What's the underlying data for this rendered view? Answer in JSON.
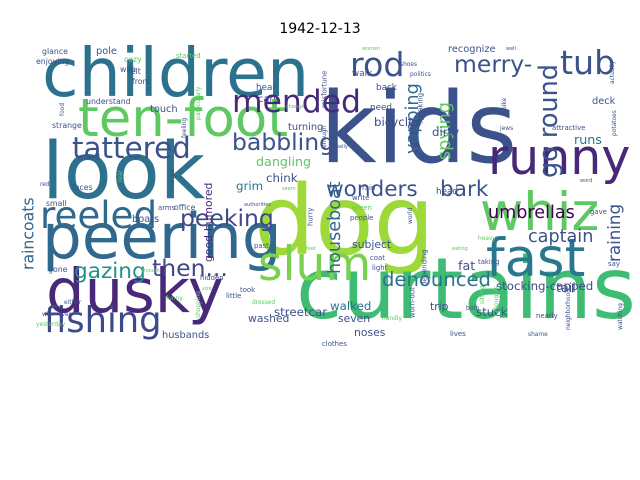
{
  "chart_data": {
    "type": "wordcloud",
    "title": "1942-12-13",
    "palette": [
      "#440154",
      "#3b528b",
      "#21918c",
      "#5ec962",
      "#9ed93a"
    ],
    "words": [
      {
        "text": "kids",
        "weight": 100,
        "color": "#3b528b",
        "vertical": false
      },
      {
        "text": "dog",
        "weight": 98,
        "color": "#9ed93a",
        "vertical": false
      },
      {
        "text": "curtains",
        "weight": 86,
        "color": "#3fbc73",
        "vertical": false
      },
      {
        "text": "look",
        "weight": 80,
        "color": "#2c728e",
        "vertical": false
      },
      {
        "text": "children",
        "weight": 68,
        "color": "#2c728e",
        "vertical": false
      },
      {
        "text": "peering",
        "weight": 64,
        "color": "#31688e",
        "vertical": false
      },
      {
        "text": "dusky",
        "weight": 62,
        "color": "#482878",
        "vertical": false
      },
      {
        "text": "ten-foot",
        "weight": 54,
        "color": "#5ec962",
        "vertical": false
      },
      {
        "text": "fast",
        "weight": 54,
        "color": "#2a788e",
        "vertical": false
      },
      {
        "text": "whiz",
        "weight": 54,
        "color": "#5ec962",
        "vertical": false
      },
      {
        "text": "runny",
        "weight": 50,
        "color": "#482878",
        "vertical": false
      },
      {
        "text": "slum",
        "weight": 48,
        "color": "#7ad151",
        "vertical": false
      },
      {
        "text": "reeled",
        "weight": 38,
        "color": "#31688e",
        "vertical": false
      },
      {
        "text": "fishing",
        "weight": 36,
        "color": "#3e4989",
        "vertical": false
      },
      {
        "text": "rod",
        "weight": 34,
        "color": "#3b528b",
        "vertical": false
      },
      {
        "text": "tub",
        "weight": 34,
        "color": "#3b528b",
        "vertical": false
      },
      {
        "text": "mended",
        "weight": 32,
        "color": "#482878",
        "vertical": false
      },
      {
        "text": "tattered",
        "weight": 30,
        "color": "#3b528b",
        "vertical": false
      },
      {
        "text": "go round",
        "weight": 26,
        "color": "#3b528b",
        "vertical": true
      },
      {
        "text": "merry-",
        "weight": 24,
        "color": "#3b528b",
        "vertical": false
      },
      {
        "text": "peeking",
        "weight": 24,
        "color": "#3e4989",
        "vertical": false
      },
      {
        "text": "babbling",
        "weight": 24,
        "color": "#3b528b",
        "vertical": false
      },
      {
        "text": "then...",
        "weight": 24,
        "color": "#3e4989",
        "vertical": false
      },
      {
        "text": "wonders",
        "weight": 22,
        "color": "#3b528b",
        "vertical": false
      },
      {
        "text": "bark",
        "weight": 22,
        "color": "#3b528b",
        "vertical": false
      },
      {
        "text": "gazing",
        "weight": 22,
        "color": "#21918c",
        "vertical": false
      },
      {
        "text": "denounced",
        "weight": 20,
        "color": "#2c728e",
        "vertical": false
      },
      {
        "text": "captain",
        "weight": 18,
        "color": "#3b528b",
        "vertical": false
      },
      {
        "text": "houseboat",
        "weight": 18,
        "color": "#31688e",
        "vertical": true
      },
      {
        "text": "yapping",
        "weight": 18,
        "color": "#31688e",
        "vertical": true
      },
      {
        "text": "spying",
        "weight": 18,
        "color": "#5ec962",
        "vertical": true
      },
      {
        "text": "umbrellas",
        "weight": 18,
        "color": "#440154",
        "vertical": false
      },
      {
        "text": "raining",
        "weight": 17,
        "color": "#3b528b",
        "vertical": true
      },
      {
        "text": "raincoats",
        "weight": 16,
        "color": "#31688e",
        "vertical": true
      },
      {
        "text": "stocking-capped",
        "weight": 12,
        "color": "#3e4989",
        "vertical": false
      },
      {
        "text": "good-humored",
        "weight": 11,
        "color": "#482878",
        "vertical": true
      },
      {
        "text": "dangling",
        "weight": 13,
        "color": "#5ec962",
        "vertical": false
      },
      {
        "text": "tail",
        "weight": 13,
        "color": "#3b528b",
        "vertical": false
      },
      {
        "text": "runs",
        "weight": 13,
        "color": "#2c728e",
        "vertical": false
      },
      {
        "text": "fat",
        "weight": 13,
        "color": "#3b528b",
        "vertical": false
      },
      {
        "text": "stuck",
        "weight": 12,
        "color": "#3b528b",
        "vertical": false
      },
      {
        "text": "chink",
        "weight": 12,
        "color": "#3b528b",
        "vertical": false
      },
      {
        "text": "grim",
        "weight": 12,
        "color": "#2a788e",
        "vertical": false
      },
      {
        "text": "dirty",
        "weight": 12,
        "color": "#3b528b",
        "vertical": false
      },
      {
        "text": "bicycles",
        "weight": 12,
        "color": "#3e4989",
        "vertical": false
      },
      {
        "text": "walked",
        "weight": 12,
        "color": "#2c728e",
        "vertical": false
      },
      {
        "text": "streetcar",
        "weight": 12,
        "color": "#3b528b",
        "vertical": false
      },
      {
        "text": "washed",
        "weight": 11,
        "color": "#3b528b",
        "vertical": false
      },
      {
        "text": "subject",
        "weight": 11,
        "color": "#3b528b",
        "vertical": false
      },
      {
        "text": "trip",
        "weight": 11,
        "color": "#3b528b",
        "vertical": false
      },
      {
        "text": "seven",
        "weight": 11,
        "color": "#3b528b",
        "vertical": false
      },
      {
        "text": "noses",
        "weight": 11,
        "color": "#3b528b",
        "vertical": false
      },
      {
        "text": "husbands",
        "weight": 10,
        "color": "#3b528b",
        "vertical": false
      },
      {
        "text": "boats",
        "weight": 10,
        "color": "#3b528b",
        "vertical": false
      },
      {
        "text": "recognize",
        "weight": 10,
        "color": "#3b528b",
        "vertical": false
      },
      {
        "text": "pole",
        "weight": 10,
        "color": "#3b528b",
        "vertical": false
      },
      {
        "text": "deck",
        "weight": 10,
        "color": "#3b528b",
        "vertical": false
      },
      {
        "text": "touch",
        "weight": 10,
        "color": "#3b528b",
        "vertical": false
      },
      {
        "text": "turning",
        "weight": 10,
        "color": "#3b528b",
        "vertical": false
      },
      {
        "text": "cars",
        "weight": 10,
        "color": "#3b528b",
        "vertical": false
      },
      {
        "text": "hear",
        "weight": 9,
        "color": "#3b528b",
        "vertical": false
      },
      {
        "text": "head",
        "weight": 9,
        "color": "#3b528b",
        "vertical": false
      },
      {
        "text": "need",
        "weight": 9,
        "color": "#3b528b",
        "vertical": false
      },
      {
        "text": "back",
        "weight": 9,
        "color": "#3b528b",
        "vertical": false
      },
      {
        "text": "walk",
        "weight": 9,
        "color": "#3b528b",
        "vertical": false
      },
      {
        "text": "glance",
        "weight": 8,
        "color": "#3b528b",
        "vertical": false
      },
      {
        "text": "enjoying",
        "weight": 8,
        "color": "#3b528b",
        "vertical": false
      },
      {
        "text": "understand",
        "weight": 8,
        "color": "#3b528b",
        "vertical": false
      },
      {
        "text": "strange",
        "weight": 8,
        "color": "#3b528b",
        "vertical": false
      },
      {
        "text": "mood",
        "weight": 8,
        "color": "#3b528b",
        "vertical": false
      },
      {
        "text": "faces",
        "weight": 8,
        "color": "#3b528b",
        "vertical": false
      },
      {
        "text": "small",
        "weight": 8,
        "color": "#3b528b",
        "vertical": false
      },
      {
        "text": "gone",
        "weight": 8,
        "color": "#3b528b",
        "vertical": false
      },
      {
        "text": "cozy",
        "weight": 8,
        "color": "#5ec962",
        "vertical": false
      },
      {
        "text": "wife",
        "weight": 8,
        "color": "#3b528b",
        "vertical": false
      },
      {
        "text": "felt",
        "weight": 8,
        "color": "#3b528b",
        "vertical": false
      },
      {
        "text": "front",
        "weight": 8,
        "color": "#3b528b",
        "vertical": false
      },
      {
        "text": "started",
        "weight": 7,
        "color": "#5ec962",
        "vertical": false
      },
      {
        "text": "office",
        "weight": 8,
        "color": "#3b528b",
        "vertical": false
      },
      {
        "text": "arms",
        "weight": 7,
        "color": "#3b528b",
        "vertical": false
      },
      {
        "text": "hidden",
        "weight": 7,
        "color": "#3b528b",
        "vertical": false
      },
      {
        "text": "past",
        "weight": 7,
        "color": "#3b528b",
        "vertical": false
      },
      {
        "text": "people",
        "weight": 7,
        "color": "#3b528b",
        "vertical": false
      },
      {
        "text": "write",
        "weight": 7,
        "color": "#3b528b",
        "vertical": false
      },
      {
        "text": "rain",
        "weight": 7,
        "color": "#3b528b",
        "vertical": false
      },
      {
        "text": "coat",
        "weight": 7,
        "color": "#3b528b",
        "vertical": false
      },
      {
        "text": "light",
        "weight": 7,
        "color": "#3b528b",
        "vertical": false
      },
      {
        "text": "green",
        "weight": 7,
        "color": "#5ec962",
        "vertical": false
      },
      {
        "text": "clothes",
        "weight": 7,
        "color": "#3b528b",
        "vertical": false
      },
      {
        "text": "took",
        "weight": 7,
        "color": "#3b528b",
        "vertical": false
      },
      {
        "text": "little",
        "weight": 7,
        "color": "#3b528b",
        "vertical": false
      },
      {
        "text": "hurry",
        "weight": 7,
        "color": "#3b528b",
        "vertical": true
      },
      {
        "text": "dressed",
        "weight": 6,
        "color": "#5ec962",
        "vertical": false
      },
      {
        "text": "nearly",
        "weight": 7,
        "color": "#3b528b",
        "vertical": false
      },
      {
        "text": "gave",
        "weight": 7,
        "color": "#3b528b",
        "vertical": false
      },
      {
        "text": "say",
        "weight": 7,
        "color": "#3b528b",
        "vertical": false
      },
      {
        "text": "taking",
        "weight": 7,
        "color": "#3b528b",
        "vertical": false
      },
      {
        "text": "lives",
        "weight": 7,
        "color": "#3b528b",
        "vertical": false
      },
      {
        "text": "shame",
        "weight": 6,
        "color": "#3b528b",
        "vertical": false
      },
      {
        "text": "heavy",
        "weight": 6,
        "color": "#5ec962",
        "vertical": false
      },
      {
        "text": "funny",
        "weight": 6,
        "color": "#5ec962",
        "vertical": false
      },
      {
        "text": "either",
        "weight": 6,
        "color": "#3b528b",
        "vertical": false
      },
      {
        "text": "whenever",
        "weight": 6,
        "color": "#3b528b",
        "vertical": false
      },
      {
        "text": "yesterday",
        "weight": 6,
        "color": "#5ec962",
        "vertical": false
      },
      {
        "text": "shopping",
        "weight": 6,
        "color": "#5ec962",
        "vertical": true
      },
      {
        "text": "sitting",
        "weight": 6,
        "color": "#5ec962",
        "vertical": true
      },
      {
        "text": "thoughts",
        "weight": 6,
        "color": "#5ec962",
        "vertical": true
      },
      {
        "text": "handly",
        "weight": 6,
        "color": "#5ec962",
        "vertical": false
      },
      {
        "text": "both",
        "weight": 6,
        "color": "#3b528b",
        "vertical": false
      },
      {
        "text": "world",
        "weight": 6,
        "color": "#3b528b",
        "vertical": true
      },
      {
        "text": "depending",
        "weight": 7,
        "color": "#3b528b",
        "vertical": true
      },
      {
        "text": "worn-out",
        "weight": 7,
        "color": "#3b528b",
        "vertical": true
      },
      {
        "text": "speaking",
        "weight": 7,
        "color": "#3b528b",
        "vertical": true
      },
      {
        "text": "misfortune",
        "weight": 7,
        "color": "#3b528b",
        "vertical": true
      },
      {
        "text": "enough",
        "weight": 6,
        "color": "#3b528b",
        "vertical": true
      },
      {
        "text": "feeling",
        "weight": 6,
        "color": "#3b528b",
        "vertical": true
      },
      {
        "text": "particularly",
        "weight": 6,
        "color": "#5ec962",
        "vertical": true
      },
      {
        "text": "actually",
        "weight": 6,
        "color": "#3b528b",
        "vertical": true
      },
      {
        "text": "potatoes",
        "weight": 6,
        "color": "#3b528b",
        "vertical": true
      },
      {
        "text": "watching",
        "weight": 6,
        "color": "#3b528b",
        "vertical": true
      },
      {
        "text": "neighborhood",
        "weight": 6,
        "color": "#3b528b",
        "vertical": true
      },
      {
        "text": "margot",
        "weight": 6,
        "color": "#3b528b",
        "vertical": true
      },
      {
        "text": "food",
        "weight": 6,
        "color": "#3b528b",
        "vertical": true
      },
      {
        "text": "red",
        "weight": 6,
        "color": "#3b528b",
        "vertical": false
      },
      {
        "text": "real",
        "weight": 6,
        "color": "#5ec962",
        "vertical": true
      },
      {
        "text": "attractive",
        "weight": 7,
        "color": "#3b528b",
        "vertical": false
      },
      {
        "text": "politics",
        "weight": 6,
        "color": "#3b528b",
        "vertical": false
      },
      {
        "text": "shoes",
        "weight": 6,
        "color": "#3b528b",
        "vertical": false
      },
      {
        "text": "bike",
        "weight": 6,
        "color": "#3b528b",
        "vertical": true
      },
      {
        "text": "jews",
        "weight": 6,
        "color": "#3b528b",
        "vertical": false
      },
      {
        "text": "really",
        "weight": 5,
        "color": "#3b528b",
        "vertical": false
      },
      {
        "text": "change",
        "weight": 5,
        "color": "#5ec962",
        "vertical": false
      },
      {
        "text": "authorities",
        "weight": 5,
        "color": "#3b528b",
        "vertical": false
      },
      {
        "text": "women",
        "weight": 5,
        "color": "#5ec962",
        "vertical": false
      },
      {
        "text": "eating",
        "weight": 5,
        "color": "#5ec962",
        "vertical": false
      },
      {
        "text": "word",
        "weight": 5,
        "color": "#3b528b",
        "vertical": false
      },
      {
        "text": "seem",
        "weight": 5,
        "color": "#5ec962",
        "vertical": false
      },
      {
        "text": "feet",
        "weight": 5,
        "color": "#5ec962",
        "vertical": false
      },
      {
        "text": "size",
        "weight": 5,
        "color": "#5ec962",
        "vertical": false
      },
      {
        "text": "though",
        "weight": 5,
        "color": "#5ec962",
        "vertical": false
      },
      {
        "text": "well",
        "weight": 5,
        "color": "#3b528b",
        "vertical": false
      }
    ]
  }
}
